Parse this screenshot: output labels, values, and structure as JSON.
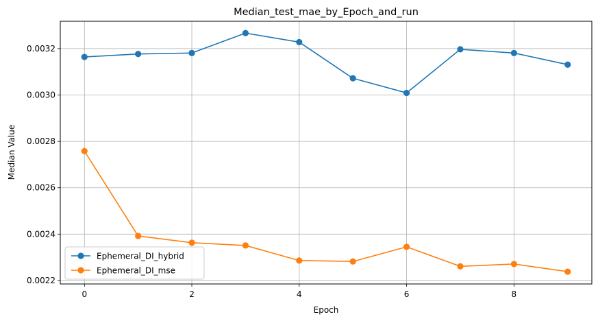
{
  "chart_data": {
    "type": "line",
    "title": "Median_test_mae_by_Epoch_and_run",
    "xlabel": "Epoch",
    "ylabel": "Median Value",
    "x": [
      0,
      1,
      2,
      3,
      4,
      5,
      6,
      7,
      8,
      9
    ],
    "xlim": [
      -0.45,
      9.45
    ],
    "ylim": [
      0.002185,
      0.003318
    ],
    "x_ticks": [
      0,
      2,
      4,
      6,
      8
    ],
    "x_tick_labels": [
      "0",
      "2",
      "4",
      "6",
      "8"
    ],
    "y_ticks": [
      0.0022,
      0.0024,
      0.0026,
      0.0028,
      0.003,
      0.0032
    ],
    "y_tick_labels": [
      "0.0022",
      "0.0024",
      "0.0026",
      "0.0028",
      "0.0030",
      "0.0032"
    ],
    "grid": true,
    "legend_position": "lower-left",
    "series": [
      {
        "name": "Ephemeral_DI_hybrid",
        "color": "#1f77b4",
        "marker": "circle",
        "values": [
          0.003164,
          0.003177,
          0.003181,
          0.003267,
          0.003228,
          0.003072,
          0.003009,
          0.003197,
          0.003181,
          0.003131
        ]
      },
      {
        "name": "Ephemeral_DI_mse",
        "color": "#ff7f0e",
        "marker": "circle",
        "values": [
          0.002758,
          0.002392,
          0.002363,
          0.002351,
          0.002286,
          0.002282,
          0.002345,
          0.002261,
          0.002271,
          0.002238
        ]
      }
    ]
  }
}
